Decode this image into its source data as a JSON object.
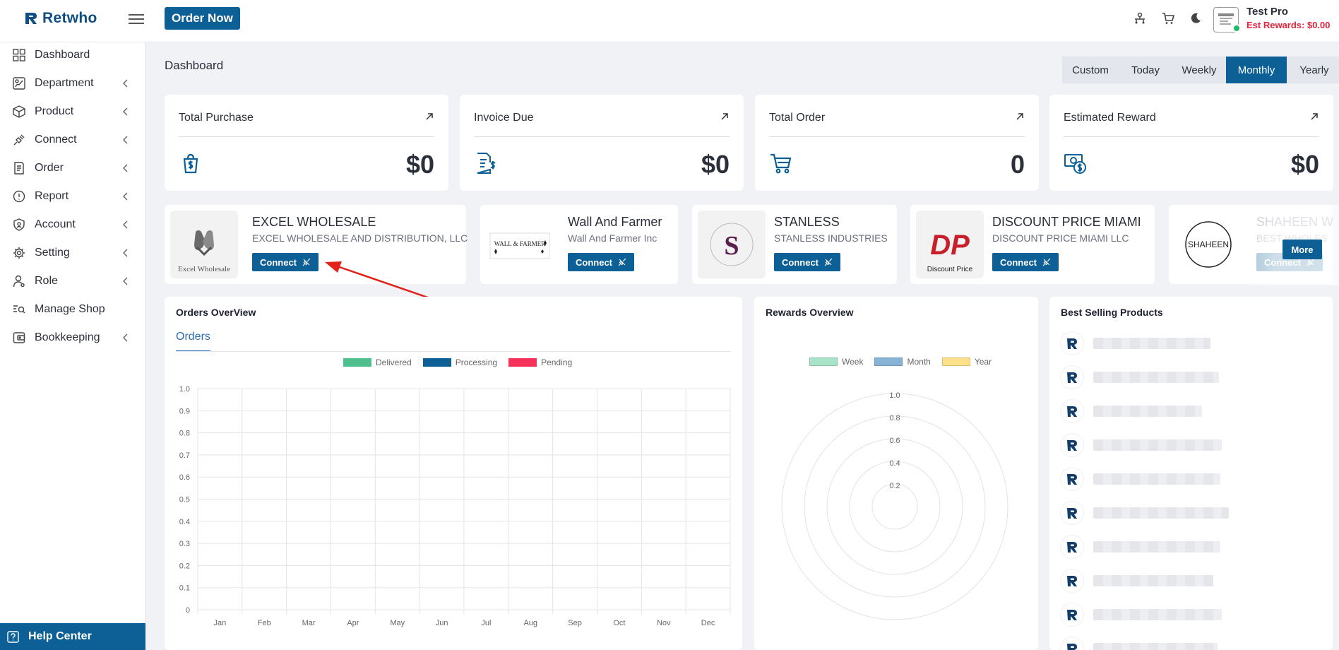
{
  "brand": {
    "name": "Retwho"
  },
  "header": {
    "order_button": "Order Now",
    "user_name": "Test Pro",
    "user_reward": "Est Rewards: $0.00",
    "icons": [
      "network-icon",
      "cart-icon",
      "moon-icon"
    ]
  },
  "sidebar": {
    "items": [
      {
        "label": "Dashboard",
        "icon": "grid-icon",
        "has_submenu": false
      },
      {
        "label": "Department",
        "icon": "department-icon",
        "has_submenu": true
      },
      {
        "label": "Product",
        "icon": "box-icon",
        "has_submenu": true
      },
      {
        "label": "Connect",
        "icon": "plug-icon",
        "has_submenu": true
      },
      {
        "label": "Order",
        "icon": "order-icon",
        "has_submenu": true
      },
      {
        "label": "Report",
        "icon": "info-icon",
        "has_submenu": true
      },
      {
        "label": "Account",
        "icon": "shield-icon",
        "has_submenu": true
      },
      {
        "label": "Setting",
        "icon": "gear-icon",
        "has_submenu": true
      },
      {
        "label": "Role",
        "icon": "user-icon",
        "has_submenu": true
      },
      {
        "label": "Manage Shop",
        "icon": "shop-search-icon",
        "has_submenu": false
      },
      {
        "label": "Bookkeeping",
        "icon": "wallet-icon",
        "has_submenu": true
      }
    ],
    "help": "Help Center"
  },
  "main": {
    "title": "Dashboard",
    "periods": [
      "Custom",
      "Today",
      "Weekly",
      "Monthly",
      "Yearly"
    ],
    "active_period": "Monthly",
    "stats": [
      {
        "title": "Total Purchase",
        "value": "$0",
        "icon": "shopping-bag-dollar-icon"
      },
      {
        "title": "Invoice Due",
        "value": "$0",
        "icon": "invoice-dollar-icon"
      },
      {
        "title": "Total Order",
        "value": "0",
        "icon": "cart-icon"
      },
      {
        "title": "Estimated Reward",
        "value": "$0",
        "icon": "money-reward-icon"
      }
    ],
    "vendors": [
      {
        "name": "EXCEL WHOLESALE",
        "company": "EXCEL WHOLESALE AND DISTRIBUTION, LLC",
        "logo_text": "Excel Wholesale",
        "button": "Connect"
      },
      {
        "name": "Wall And Farmer",
        "company": "Wall And Farmer Inc",
        "logo_text": "WALL & FARMER",
        "button": "Connect"
      },
      {
        "name": "STANLESS",
        "company": "STANLESS INDUSTRIES",
        "logo_text": "S",
        "button": "Connect"
      },
      {
        "name": "DISCOUNT PRICE MIAMI",
        "company": "DISCOUNT PRICE MIAMI LLC",
        "logo_text": "Discount Price",
        "button": "Connect"
      },
      {
        "name": "SHAHEEN W",
        "company": "BEST WHOLES",
        "logo_text": "SHAHEEN",
        "button": "Connect"
      }
    ],
    "more_button": "More",
    "orders_panel": {
      "title": "Orders OverView",
      "tab": "Orders"
    },
    "rewards_panel": {
      "title": "Rewards Overview"
    },
    "best_selling": {
      "title": "Best Selling Products",
      "count": 10
    }
  },
  "chart_data": [
    {
      "type": "bar",
      "categories": [
        "Jan",
        "Feb",
        "Mar",
        "Apr",
        "May",
        "Jun",
        "Jul",
        "Aug",
        "Sep",
        "Oct",
        "Nov",
        "Dec"
      ],
      "series": [
        {
          "name": "Delivered",
          "color": "#4fc08d",
          "values": [
            0,
            0,
            0,
            0,
            0,
            0,
            0,
            0,
            0,
            0,
            0,
            0
          ]
        },
        {
          "name": "Processing",
          "color": "#0d6096",
          "values": [
            0,
            0,
            0,
            0,
            0,
            0,
            0,
            0,
            0,
            0,
            0,
            0
          ]
        },
        {
          "name": "Pending",
          "color": "#f7325a",
          "values": [
            0,
            0,
            0,
            0,
            0,
            0,
            0,
            0,
            0,
            0,
            0,
            0
          ]
        }
      ],
      "yticks": [
        "0",
        "0.1",
        "0.2",
        "0.3",
        "0.4",
        "0.5",
        "0.6",
        "0.7",
        "0.8",
        "0.9",
        "1.0"
      ],
      "ylim": [
        0,
        1
      ],
      "grid": true,
      "legend": "top-center"
    },
    {
      "type": "radar",
      "series": [
        {
          "name": "Week",
          "color": "#a6e3c7"
        },
        {
          "name": "Month",
          "color": "#87b3d6"
        },
        {
          "name": "Year",
          "color": "#fde18a"
        }
      ],
      "rticks": [
        "0.2",
        "0.4",
        "0.6",
        "0.8",
        "1.0"
      ],
      "rlim": [
        0,
        1
      ],
      "legend": "top-center"
    }
  ]
}
